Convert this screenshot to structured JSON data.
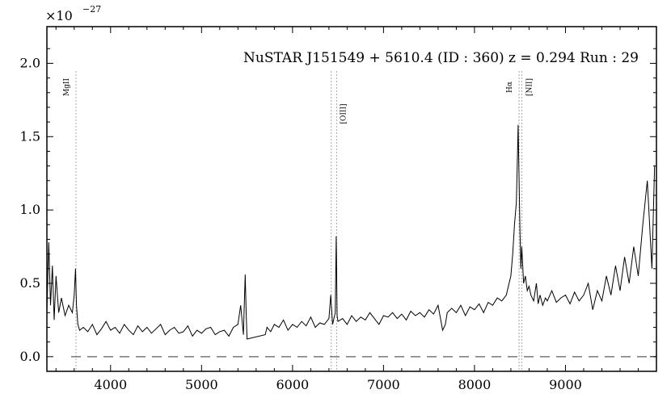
{
  "chart_data": {
    "type": "line",
    "title": "NuSTAR J151549 + 5610.4 (ID : 360)   z = 0.294   Run : 29",
    "xlabel": "",
    "ylabel": "",
    "y_multiplier": "×10",
    "y_exponent": "−27",
    "xlim": [
      3300,
      10000
    ],
    "ylim": [
      -0.1,
      2.25
    ],
    "x_ticks": [
      4000,
      5000,
      6000,
      7000,
      8000,
      9000
    ],
    "y_ticks": [
      0.0,
      0.5,
      1.0,
      1.5,
      2.0
    ],
    "x_tick_labels": [
      "4000",
      "5000",
      "6000",
      "7000",
      "8000",
      "9000"
    ],
    "y_tick_labels": [
      "0.0",
      "0.5",
      "1.0",
      "1.5",
      "2.0"
    ],
    "grid": false,
    "zero_line": {
      "y": 0.0,
      "style": "dashed",
      "color": "#777777"
    },
    "emission_lines": [
      {
        "label": "MgII",
        "x": [
          3620
        ]
      },
      {
        "label": "[OIII]",
        "x": [
          6425,
          6485
        ]
      },
      {
        "label": "Hα",
        "x": [
          8490
        ]
      },
      {
        "label": "[NII]",
        "x": [
          8520
        ]
      }
    ],
    "series": [
      {
        "color": "#000000",
        "x": [
          3300,
          3320,
          3340,
          3360,
          3380,
          3400,
          3430,
          3460,
          3500,
          3540,
          3580,
          3600,
          3615,
          3625,
          3640,
          3660,
          3700,
          3750,
          3800,
          3850,
          3900,
          3950,
          4000,
          4050,
          4100,
          4150,
          4200,
          4250,
          4300,
          4350,
          4400,
          4450,
          4500,
          4550,
          4600,
          4650,
          4700,
          4750,
          4800,
          4850,
          4900,
          4950,
          5000,
          5050,
          5100,
          5150,
          5200,
          5250,
          5300,
          5350,
          5400,
          5430,
          5460,
          5480,
          5490,
          5500,
          5700,
          5720,
          5760,
          5800,
          5850,
          5900,
          5950,
          6000,
          6050,
          6100,
          6150,
          6200,
          6250,
          6300,
          6350,
          6400,
          6420,
          6440,
          6470,
          6480,
          6490,
          6500,
          6550,
          6600,
          6650,
          6700,
          6750,
          6800,
          6850,
          6900,
          6950,
          7000,
          7050,
          7100,
          7150,
          7200,
          7250,
          7300,
          7350,
          7400,
          7450,
          7500,
          7550,
          7600,
          7650,
          7680,
          7700,
          7750,
          7800,
          7850,
          7900,
          7950,
          8000,
          8050,
          8100,
          8150,
          8200,
          8250,
          8300,
          8350,
          8380,
          8400,
          8420,
          8440,
          8460,
          8470,
          8480,
          8490,
          8500,
          8510,
          8520,
          8540,
          8560,
          8580,
          8600,
          8620,
          8650,
          8680,
          8700,
          8720,
          8750,
          8780,
          8800,
          8850,
          8900,
          8950,
          9000,
          9050,
          9100,
          9150,
          9200,
          9250,
          9300,
          9350,
          9400,
          9450,
          9500,
          9550,
          9600,
          9650,
          9700,
          9750,
          9800,
          9850,
          9900,
          9950,
          9980
        ],
        "y": [
          0.3,
          0.78,
          0.35,
          0.62,
          0.25,
          0.55,
          0.3,
          0.4,
          0.28,
          0.35,
          0.3,
          0.42,
          0.6,
          0.35,
          0.22,
          0.18,
          0.2,
          0.17,
          0.22,
          0.15,
          0.19,
          0.24,
          0.18,
          0.2,
          0.16,
          0.22,
          0.18,
          0.15,
          0.21,
          0.17,
          0.2,
          0.16,
          0.19,
          0.22,
          0.15,
          0.18,
          0.2,
          0.16,
          0.17,
          0.21,
          0.14,
          0.18,
          0.16,
          0.19,
          0.2,
          0.15,
          0.17,
          0.18,
          0.14,
          0.2,
          0.22,
          0.35,
          0.15,
          0.56,
          0.3,
          0.12,
          0.15,
          0.2,
          0.17,
          0.22,
          0.2,
          0.25,
          0.18,
          0.22,
          0.2,
          0.24,
          0.21,
          0.27,
          0.2,
          0.23,
          0.22,
          0.26,
          0.42,
          0.22,
          0.3,
          0.82,
          0.28,
          0.24,
          0.26,
          0.22,
          0.28,
          0.24,
          0.27,
          0.25,
          0.3,
          0.26,
          0.22,
          0.28,
          0.27,
          0.3,
          0.26,
          0.29,
          0.25,
          0.31,
          0.28,
          0.3,
          0.27,
          0.32,
          0.29,
          0.35,
          0.18,
          0.22,
          0.3,
          0.33,
          0.3,
          0.35,
          0.28,
          0.34,
          0.32,
          0.36,
          0.3,
          0.37,
          0.35,
          0.4,
          0.38,
          0.42,
          0.5,
          0.55,
          0.7,
          0.9,
          1.05,
          1.3,
          1.58,
          1.2,
          0.85,
          0.6,
          0.75,
          0.5,
          0.55,
          0.45,
          0.48,
          0.42,
          0.38,
          0.5,
          0.36,
          0.42,
          0.35,
          0.4,
          0.38,
          0.45,
          0.37,
          0.4,
          0.42,
          0.36,
          0.44,
          0.38,
          0.42,
          0.5,
          0.32,
          0.45,
          0.38,
          0.55,
          0.42,
          0.62,
          0.45,
          0.68,
          0.5,
          0.75,
          0.55,
          0.9,
          1.2,
          0.6,
          1.3
        ]
      }
    ]
  }
}
